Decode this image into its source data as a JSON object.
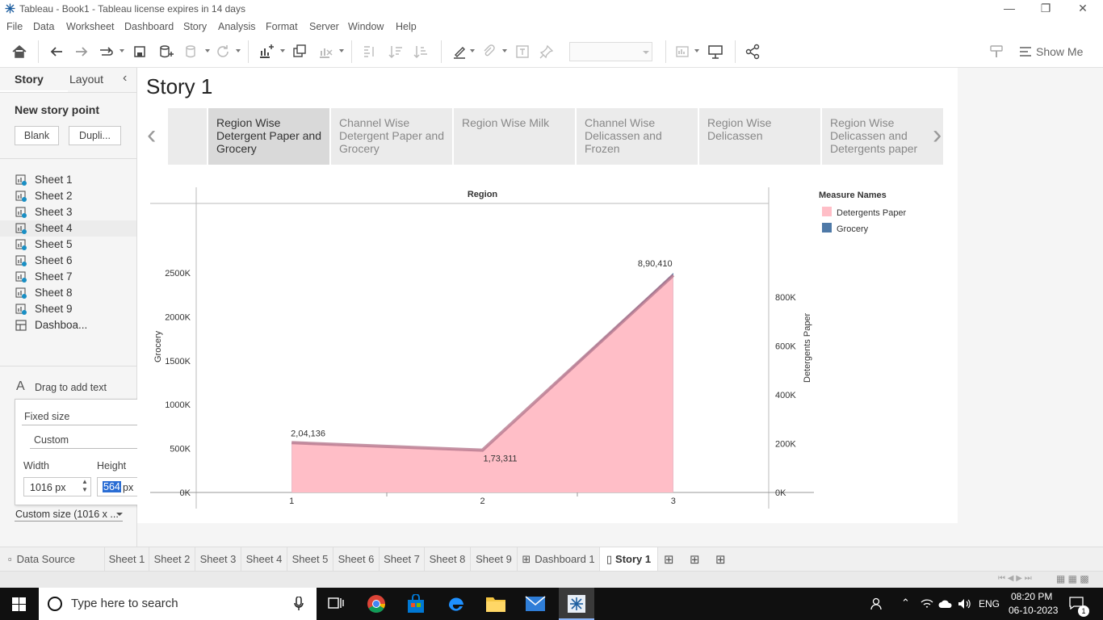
{
  "window": {
    "title": "Tableau - Book1 - Tableau license expires in 14 days"
  },
  "menu": [
    "File",
    "Data",
    "Worksheet",
    "Dashboard",
    "Story",
    "Analysis",
    "Format",
    "Server",
    "Window",
    "Help"
  ],
  "toolbar": {
    "show_me_label": "Show Me",
    "icons": [
      "home-icon",
      "undo-icon",
      "redo-icon",
      "replay-icon",
      "save-icon",
      "new-datasource-icon",
      "pause-icon",
      "refresh-icon",
      "new-worksheet-icon",
      "duplicate-icon",
      "clear-icon",
      "swap-icon",
      "sort-asc-icon",
      "sort-desc-icon",
      "highlight-icon",
      "group-icon",
      "label-icon",
      "pin-icon",
      "fit-select",
      "chart-view-icon",
      "presentation-icon",
      "share-icon"
    ]
  },
  "left_pane": {
    "tabs": [
      "Story",
      "Layout"
    ],
    "new_story_point": "New story point",
    "blank_label": "Blank",
    "duplicate_label": "Dupli...",
    "sheets": [
      "Sheet 1",
      "Sheet 2",
      "Sheet 3",
      "Sheet 4",
      "Sheet 5",
      "Sheet 6",
      "Sheet 7",
      "Sheet 8",
      "Sheet 9",
      "Dashboa..."
    ],
    "drag_text": "Drag to add text",
    "size_mode": "Fixed size",
    "size_preset": "Custom",
    "width_label": "Width",
    "height_label": "Height",
    "width_value": "1016 px",
    "height_value_num": "564",
    "height_value_unit": "px",
    "custom_size": "Custom size (1016 x ..."
  },
  "story": {
    "title": "Story 1",
    "points": [
      "Region Wise Detergent Paper and Grocery",
      "Channel Wise Detergent Paper and Grocery",
      "Region Wise Milk",
      "Channel Wise Delicassen and Frozen",
      "Region Wise Delicassen",
      "Region Wise Delicassen and Detergents paper"
    ],
    "active_point": 0
  },
  "chart_data": {
    "type": "area",
    "header": "Region",
    "x": [
      1,
      2,
      3
    ],
    "x_ticks": [
      "1",
      "2",
      "3"
    ],
    "y_left_label": "Grocery",
    "y_left_ticks": [
      "0K",
      "500K",
      "1000K",
      "1500K",
      "2000K",
      "2500K"
    ],
    "y_left_lim": [
      0,
      2500000
    ],
    "y_right_label": "Detergents Paper",
    "y_right_ticks": [
      "0K",
      "200K",
      "400K",
      "600K",
      "800K"
    ],
    "y_right_lim": [
      0,
      900000
    ],
    "series": [
      {
        "name": "Grocery",
        "axis": "left",
        "color": "#4e79a7",
        "values": [
          570000,
          470000,
          2500000
        ]
      },
      {
        "name": "Detergents Paper",
        "axis": "right",
        "color": "#ffbec7",
        "values": [
          204136,
          173311,
          890410
        ]
      }
    ],
    "data_labels": [
      "2,04,136",
      "1,73,311",
      "8,90,410"
    ],
    "legend": {
      "title": "Measure Names",
      "position": "right"
    }
  },
  "bottom_tabs": [
    "Data Source",
    "Sheet 1",
    "Sheet 2",
    "Sheet 3",
    "Sheet 4",
    "Sheet 5",
    "Sheet 6",
    "Sheet 7",
    "Sheet 8",
    "Sheet 9",
    "Dashboard 1",
    "Story 1"
  ],
  "taskbar": {
    "search_placeholder": "Type here to search",
    "lang": "ENG",
    "time": "08:20 PM",
    "date": "06-10-2023",
    "notification_count": "1"
  }
}
